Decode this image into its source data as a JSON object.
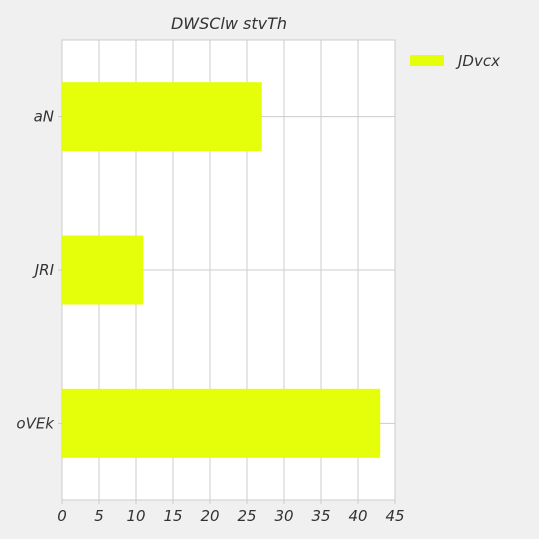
{
  "chart_data": {
    "type": "bar",
    "orientation": "horizontal",
    "title": "DWSClw stvTh",
    "xlabel": "",
    "ylabel": "",
    "categories": [
      "aN",
      "JRI",
      "oVEk"
    ],
    "series": [
      {
        "name": "JDvcx",
        "values": [
          27,
          11,
          43
        ],
        "color": "#e5ff0a"
      }
    ],
    "xlim": [
      0,
      45
    ],
    "xticks": [
      0,
      5,
      10,
      15,
      20,
      25,
      30,
      35,
      40,
      45
    ],
    "grid": true,
    "legend_position": "top-right",
    "colors": {
      "background": "#f0f0f0",
      "plot_background": "#ffffff",
      "grid": "#cccccc",
      "text": "#333333"
    }
  }
}
